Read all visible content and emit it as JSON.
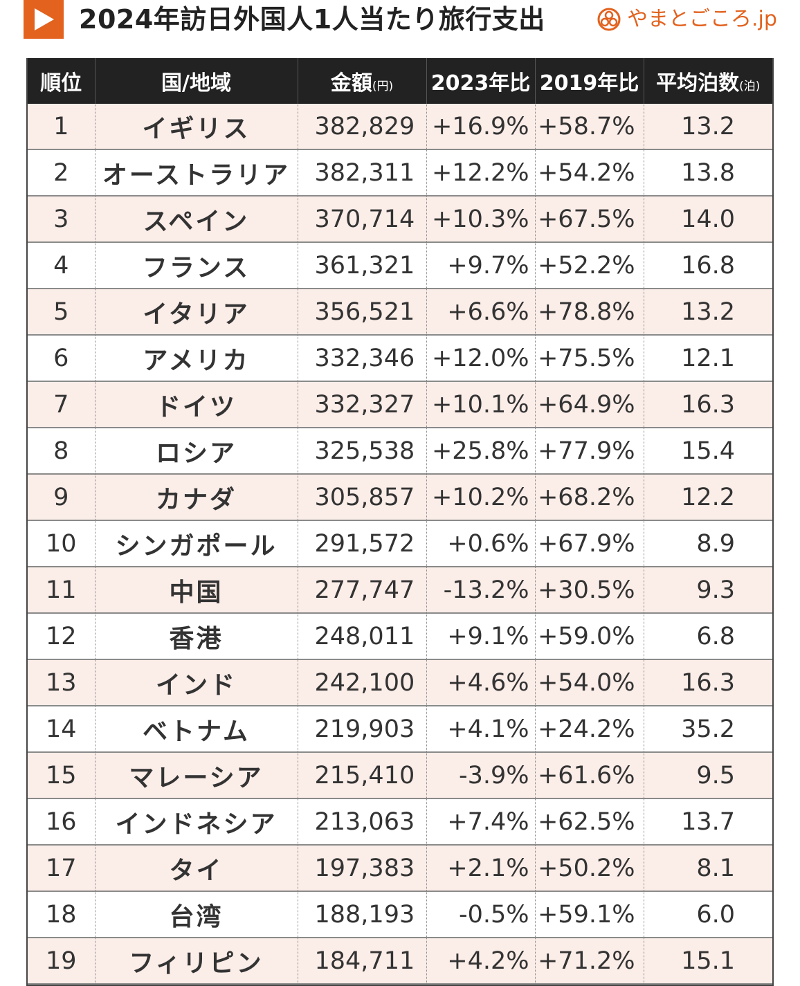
{
  "header": {
    "title": "2024年訪日外国人1人当たり旅行支出",
    "brand": "やまとごころ.jp",
    "accent_color": "#e2621e",
    "play_icon": "play-triangle-icon",
    "brand_icon": "yamatogokoro-logo-icon"
  },
  "table": {
    "headers": {
      "rank": "順位",
      "country": "国/地域",
      "amount": "金額",
      "amount_unit": "(円)",
      "vs2023": "2023年比",
      "vs2019": "2019年比",
      "nights": "平均泊数",
      "nights_unit": "(泊)"
    },
    "rows": [
      {
        "rank": "1",
        "country": "イギリス",
        "amount": "382,829",
        "vs2023": "+16.9%",
        "vs2019": "+58.7%",
        "nights": "13.2"
      },
      {
        "rank": "2",
        "country": "オーストラリア",
        "amount": "382,311",
        "vs2023": "+12.2%",
        "vs2019": "+54.2%",
        "nights": "13.8"
      },
      {
        "rank": "3",
        "country": "スペイン",
        "amount": "370,714",
        "vs2023": "+10.3%",
        "vs2019": "+67.5%",
        "nights": "14.0"
      },
      {
        "rank": "4",
        "country": "フランス",
        "amount": "361,321",
        "vs2023": "+9.7%",
        "vs2019": "+52.2%",
        "nights": "16.8"
      },
      {
        "rank": "5",
        "country": "イタリア",
        "amount": "356,521",
        "vs2023": "+6.6%",
        "vs2019": "+78.8%",
        "nights": "13.2"
      },
      {
        "rank": "6",
        "country": "アメリカ",
        "amount": "332,346",
        "vs2023": "+12.0%",
        "vs2019": "+75.5%",
        "nights": "12.1"
      },
      {
        "rank": "7",
        "country": "ドイツ",
        "amount": "332,327",
        "vs2023": "+10.1%",
        "vs2019": "+64.9%",
        "nights": "16.3"
      },
      {
        "rank": "8",
        "country": "ロシア",
        "amount": "325,538",
        "vs2023": "+25.8%",
        "vs2019": "+77.9%",
        "nights": "15.4"
      },
      {
        "rank": "9",
        "country": "カナダ",
        "amount": "305,857",
        "vs2023": "+10.2%",
        "vs2019": "+68.2%",
        "nights": "12.2"
      },
      {
        "rank": "10",
        "country": "シンガポール",
        "amount": "291,572",
        "vs2023": "+0.6%",
        "vs2019": "+67.9%",
        "nights": "8.9"
      },
      {
        "rank": "11",
        "country": "中国",
        "amount": "277,747",
        "vs2023": "-13.2%",
        "vs2019": "+30.5%",
        "nights": "9.3"
      },
      {
        "rank": "12",
        "country": "香港",
        "amount": "248,011",
        "vs2023": "+9.1%",
        "vs2019": "+59.0%",
        "nights": "6.8"
      },
      {
        "rank": "13",
        "country": "インド",
        "amount": "242,100",
        "vs2023": "+4.6%",
        "vs2019": "+54.0%",
        "nights": "16.3"
      },
      {
        "rank": "14",
        "country": "ベトナム",
        "amount": "219,903",
        "vs2023": "+4.1%",
        "vs2019": "+24.2%",
        "nights": "35.2"
      },
      {
        "rank": "15",
        "country": "マレーシア",
        "amount": "215,410",
        "vs2023": "-3.9%",
        "vs2019": "+61.6%",
        "nights": "9.5"
      },
      {
        "rank": "16",
        "country": "インドネシア",
        "amount": "213,063",
        "vs2023": "+7.4%",
        "vs2019": "+62.5%",
        "nights": "13.7"
      },
      {
        "rank": "17",
        "country": "タイ",
        "amount": "197,383",
        "vs2023": "+2.1%",
        "vs2019": "+50.2%",
        "nights": "8.1"
      },
      {
        "rank": "18",
        "country": "台湾",
        "amount": "188,193",
        "vs2023": "-0.5%",
        "vs2019": "+59.1%",
        "nights": "6.0"
      },
      {
        "rank": "19",
        "country": "フィリピン",
        "amount": "184,711",
        "vs2023": "+4.2%",
        "vs2019": "+71.2%",
        "nights": "15.1"
      }
    ]
  }
}
